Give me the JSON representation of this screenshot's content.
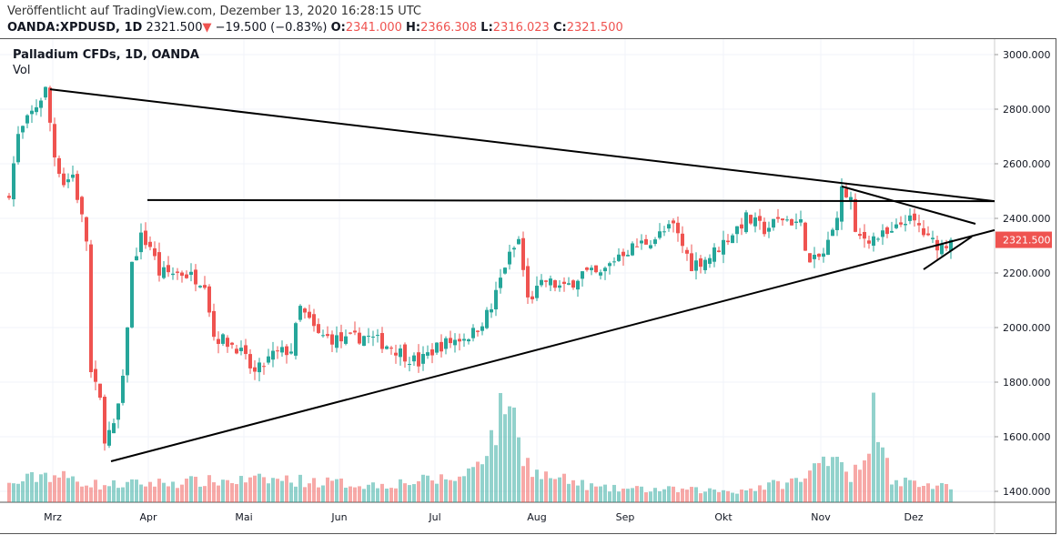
{
  "header": {
    "published": "Veröffentlicht auf TradingView.com, Dezember 13, 2020 16:28:15 UTC",
    "symbol": "OANDA:XPDUSD, 1D",
    "last": "2321.500",
    "change": "−19.500 (−0.83%)",
    "o_label": "O:",
    "o": "2341.000",
    "h_label": "H:",
    "h": "2366.308",
    "l_label": "L:",
    "l": "2316.023",
    "c_label": "C:",
    "c": "2321.500"
  },
  "legend": {
    "title": "Palladium CFDs, 1D, OANDA",
    "volume": "Vol"
  },
  "colors": {
    "up": "#26a69a",
    "down": "#ef5350",
    "grid": "#f0f3fa",
    "line": "#000000"
  },
  "chart_data": {
    "type": "candlestick",
    "title": "Palladium CFDs, 1D, OANDA",
    "ylim": [
      1400,
      3000
    ],
    "y_ticks": [
      "3000.000",
      "2800.000",
      "2600.000",
      "2400.000",
      "2200.000",
      "2000.000",
      "1800.000",
      "1600.000",
      "1400.000"
    ],
    "y_tick_values": [
      3000,
      2800,
      2600,
      2400,
      2200,
      2000,
      1800,
      1600,
      1400
    ],
    "x_labels": [
      "Mrz",
      "Apr",
      "Mai",
      "Jun",
      "Jul",
      "Aug",
      "Sep",
      "Okt",
      "Nov",
      "Dez"
    ],
    "last_price_label": "2321.500",
    "last_price": 2321.5,
    "close_waypoints": [
      [
        0,
        2500
      ],
      [
        2,
        2700
      ],
      [
        8,
        2870
      ],
      [
        10,
        2630
      ],
      [
        12,
        2530
      ],
      [
        14,
        2560
      ],
      [
        17,
        2320
      ],
      [
        18,
        1830
      ],
      [
        20,
        1730
      ],
      [
        21,
        1600
      ],
      [
        23,
        1630
      ],
      [
        25,
        1800
      ],
      [
        27,
        2230
      ],
      [
        29,
        2330
      ],
      [
        31,
        2300
      ],
      [
        33,
        2200
      ],
      [
        38,
        2200
      ],
      [
        43,
        2170
      ],
      [
        45,
        1970
      ],
      [
        50,
        1930
      ],
      [
        54,
        1830
      ],
      [
        58,
        1900
      ],
      [
        62,
        1920
      ],
      [
        64,
        2070
      ],
      [
        68,
        1970
      ],
      [
        74,
        1950
      ],
      [
        78,
        1970
      ],
      [
        84,
        1930
      ],
      [
        90,
        1870
      ],
      [
        94,
        1930
      ],
      [
        102,
        1980
      ],
      [
        106,
        2070
      ],
      [
        109,
        2230
      ],
      [
        112,
        2320
      ],
      [
        114,
        2100
      ],
      [
        118,
        2170
      ],
      [
        122,
        2140
      ],
      [
        126,
        2200
      ],
      [
        130,
        2190
      ],
      [
        134,
        2270
      ],
      [
        138,
        2300
      ],
      [
        142,
        2330
      ],
      [
        146,
        2370
      ],
      [
        150,
        2230
      ],
      [
        154,
        2260
      ],
      [
        158,
        2330
      ],
      [
        162,
        2400
      ],
      [
        166,
        2360
      ],
      [
        170,
        2400
      ],
      [
        174,
        2380
      ],
      [
        176,
        2230
      ],
      [
        179,
        2270
      ],
      [
        181,
        2350
      ],
      [
        183,
        2500
      ],
      [
        185,
        2470
      ],
      [
        186,
        2330
      ],
      [
        190,
        2330
      ],
      [
        194,
        2340
      ],
      [
        197,
        2400
      ],
      [
        200,
        2370
      ],
      [
        202,
        2320
      ],
      [
        205,
        2300
      ],
      [
        207,
        2321.5
      ]
    ],
    "volume_waypoints": [
      [
        0,
        15
      ],
      [
        8,
        25
      ],
      [
        12,
        22
      ],
      [
        20,
        15
      ],
      [
        40,
        18
      ],
      [
        60,
        20
      ],
      [
        80,
        15
      ],
      [
        100,
        22
      ],
      [
        106,
        55
      ],
      [
        108,
        75
      ],
      [
        110,
        100
      ],
      [
        112,
        50
      ],
      [
        116,
        25
      ],
      [
        130,
        12
      ],
      [
        160,
        10
      ],
      [
        175,
        20
      ],
      [
        179,
        40
      ],
      [
        181,
        48
      ],
      [
        185,
        25
      ],
      [
        188,
        30
      ],
      [
        190,
        80
      ],
      [
        192,
        65
      ],
      [
        194,
        20
      ],
      [
        207,
        12
      ]
    ],
    "trendlines": [
      {
        "from": [
          9,
          2873
        ],
        "to": [
          216.6,
          2463
        ]
      },
      {
        "from": [
          30.4,
          2467
        ],
        "to": [
          216.6,
          2463
        ]
      },
      {
        "from": [
          22.4,
          1510
        ],
        "to": [
          216.6,
          2357
        ]
      },
      {
        "from": [
          183,
          2517
        ],
        "to": [
          212.4,
          2380
        ]
      },
      {
        "from": [
          201,
          2213
        ],
        "to": [
          211.6,
          2333
        ]
      }
    ]
  }
}
